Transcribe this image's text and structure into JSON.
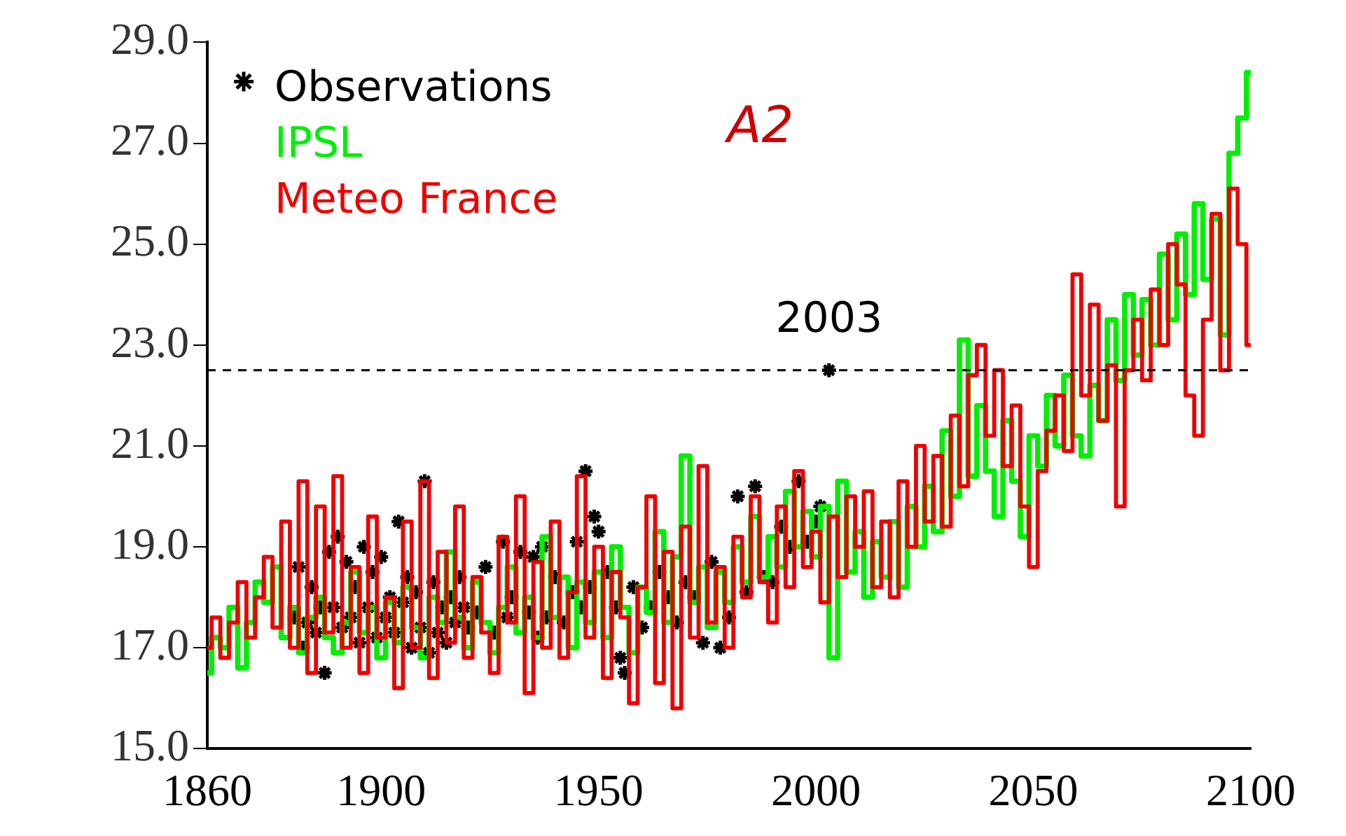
{
  "chart_data": {
    "type": "step",
    "xlim": [
      1860,
      2100
    ],
    "xticks": [
      1860,
      1900,
      1950,
      2000,
      2050,
      2100
    ],
    "ylim": [
      15,
      29
    ],
    "yticks": [
      {
        "value": 15,
        "label": "15.0"
      },
      {
        "value": 17,
        "label": "17.0"
      },
      {
        "value": 19,
        "label": "19.0"
      },
      {
        "value": 21,
        "label": "21.0"
      },
      {
        "value": 23,
        "label": "23.0"
      },
      {
        "value": 25,
        "label": "25.0"
      },
      {
        "value": 27,
        "label": "27.0"
      },
      {
        "value": 29,
        "label": "29.0"
      }
    ],
    "legend": "top left",
    "annotations": [
      "A2",
      {
        "text": "2003",
        "x": 2003,
        "y": 22.5
      }
    ],
    "ref_lines": [
      {
        "axis": "y",
        "value": 22.5,
        "color": "#000000",
        "line_style": "dashed"
      }
    ],
    "series": [
      {
        "name": "Observations",
        "type": "scatter",
        "marker": "cross",
        "color": "#000000",
        "x": [
          1880,
          1881,
          1882,
          1883,
          1884,
          1885,
          1886,
          1887,
          1888,
          1889,
          1890,
          1891,
          1892,
          1893,
          1894,
          1895,
          1896,
          1897,
          1898,
          1899,
          1900,
          1901,
          1902,
          1903,
          1904,
          1905,
          1906,
          1907,
          1908,
          1909,
          1910,
          1911,
          1912,
          1913,
          1914,
          1915,
          1916,
          1917,
          1918,
          1919,
          1920,
          1922,
          1924,
          1926,
          1928,
          1929,
          1930,
          1932,
          1934,
          1935,
          1936,
          1937,
          1938,
          1940,
          1942,
          1944,
          1945,
          1946,
          1947,
          1948,
          1949,
          1950,
          1952,
          1954,
          1955,
          1956,
          1958,
          1960,
          1962,
          1964,
          1966,
          1968,
          1970,
          1972,
          1974,
          1976,
          1978,
          1980,
          1982,
          1984,
          1986,
          1988,
          1990,
          1992,
          1994,
          1996,
          1998,
          2000,
          2001,
          2003
        ],
        "values": [
          17.6,
          18.6,
          17.0,
          17.5,
          18.2,
          17.3,
          17.8,
          16.5,
          18.9,
          17.8,
          19.2,
          17.4,
          18.7,
          17.6,
          18.2,
          17.1,
          19.0,
          17.8,
          18.5,
          17.2,
          18.8,
          17.6,
          18.0,
          17.3,
          19.5,
          17.9,
          18.4,
          17.0,
          18.1,
          17.4,
          20.3,
          16.9,
          18.3,
          17.3,
          17.8,
          17.1,
          18.0,
          17.5,
          18.4,
          17.8,
          17.4,
          17.7,
          18.6,
          17.3,
          19.1,
          17.6,
          18.0,
          18.9,
          17.7,
          18.8,
          17.2,
          19.0,
          17.6,
          18.4,
          17.5,
          18.1,
          19.1,
          17.8,
          20.5,
          18.2,
          19.6,
          19.3,
          18.5,
          17.8,
          16.8,
          16.5,
          18.2,
          17.4,
          17.8,
          18.5,
          18.0,
          17.5,
          18.3,
          18.0,
          17.1,
          18.7,
          17.0,
          17.6,
          20.0,
          18.1,
          20.2,
          18.4,
          18.3,
          19.4,
          19.0,
          20.3,
          19.1,
          19.5,
          19.8,
          22.5
        ]
      },
      {
        "name": "IPSL",
        "color": "#00ee00",
        "x": [
          1860,
          1862,
          1864,
          1866,
          1868,
          1870,
          1872,
          1874,
          1876,
          1878,
          1880,
          1882,
          1884,
          1886,
          1888,
          1890,
          1892,
          1894,
          1896,
          1898,
          1900,
          1902,
          1904,
          1906,
          1908,
          1910,
          1912,
          1914,
          1916,
          1918,
          1920,
          1922,
          1924,
          1926,
          1928,
          1930,
          1932,
          1934,
          1936,
          1938,
          1940,
          1942,
          1944,
          1946,
          1948,
          1950,
          1952,
          1954,
          1956,
          1958,
          1960,
          1962,
          1964,
          1966,
          1968,
          1970,
          1972,
          1974,
          1976,
          1978,
          1980,
          1982,
          1984,
          1986,
          1988,
          1990,
          1992,
          1994,
          1996,
          1998,
          2000,
          2002,
          2004,
          2006,
          2008,
          2010,
          2012,
          2014,
          2016,
          2018,
          2020,
          2022,
          2024,
          2026,
          2028,
          2030,
          2032,
          2034,
          2036,
          2038,
          2040,
          2042,
          2044,
          2046,
          2048,
          2050,
          2052,
          2054,
          2056,
          2058,
          2060,
          2062,
          2064,
          2066,
          2068,
          2070,
          2072,
          2074,
          2076,
          2078,
          2080,
          2082,
          2084,
          2086,
          2088,
          2090,
          2092,
          2094,
          2096,
          2098,
          2100
        ],
        "values": [
          16.5,
          17.2,
          17.0,
          17.8,
          16.6,
          17.5,
          18.3,
          17.9,
          18.6,
          17.2,
          17.8,
          16.9,
          17.6,
          18.0,
          17.2,
          16.9,
          17.5,
          18.5,
          17.3,
          17.8,
          16.8,
          17.9,
          17.1,
          18.2,
          17.4,
          16.8,
          18.0,
          17.5,
          18.9,
          17.6,
          17.0,
          18.3,
          17.5,
          16.9,
          17.8,
          18.6,
          17.3,
          18.0,
          17.2,
          19.2,
          17.6,
          18.4,
          17.0,
          18.3,
          17.5,
          18.5,
          17.2,
          19.0,
          17.8,
          16.9,
          18.2,
          17.7,
          19.3,
          17.5,
          18.8,
          20.8,
          17.9,
          18.6,
          17.4,
          18.5,
          17.9,
          19.0,
          18.3,
          19.6,
          18.4,
          19.2,
          18.6,
          20.1,
          19.0,
          19.7,
          18.8,
          19.8,
          16.8,
          20.3,
          18.5,
          19.3,
          18.0,
          19.1,
          18.4,
          19.5,
          18.2,
          19.8,
          19.0,
          20.2,
          19.3,
          21.3,
          20.0,
          23.1,
          20.4,
          21.8,
          20.5,
          19.6,
          21.5,
          20.3,
          19.2,
          21.2,
          20.6,
          22.0,
          21.0,
          22.4,
          21.2,
          20.8,
          22.2,
          21.5,
          23.5,
          22.3,
          24.0,
          22.8,
          23.9,
          23.0,
          24.8,
          23.5,
          25.2,
          24.0,
          25.8,
          24.3,
          25.5,
          23.2,
          26.8,
          27.5,
          28.4
        ]
      },
      {
        "name": "Meteo France",
        "color": "#ee0000",
        "x": [
          1860,
          1862,
          1864,
          1866,
          1868,
          1870,
          1872,
          1874,
          1876,
          1878,
          1880,
          1882,
          1884,
          1886,
          1888,
          1890,
          1892,
          1894,
          1896,
          1898,
          1900,
          1902,
          1904,
          1906,
          1908,
          1910,
          1912,
          1914,
          1916,
          1918,
          1920,
          1922,
          1924,
          1926,
          1928,
          1930,
          1932,
          1934,
          1936,
          1938,
          1940,
          1942,
          1944,
          1946,
          1948,
          1950,
          1952,
          1954,
          1956,
          1958,
          1960,
          1962,
          1964,
          1966,
          1968,
          1970,
          1972,
          1974,
          1976,
          1978,
          1980,
          1982,
          1984,
          1986,
          1988,
          1990,
          1992,
          1994,
          1996,
          1998,
          2000,
          2002,
          2004,
          2006,
          2008,
          2010,
          2012,
          2014,
          2016,
          2018,
          2020,
          2022,
          2024,
          2026,
          2028,
          2030,
          2032,
          2034,
          2036,
          2038,
          2040,
          2042,
          2044,
          2046,
          2048,
          2050,
          2052,
          2054,
          2056,
          2058,
          2060,
          2062,
          2064,
          2066,
          2068,
          2070,
          2072,
          2074,
          2076,
          2078,
          2080,
          2082,
          2084,
          2086,
          2088,
          2090,
          2092,
          2094,
          2096,
          2098,
          2100
        ],
        "values": [
          17.0,
          17.6,
          16.8,
          17.5,
          18.3,
          17.2,
          18.0,
          18.8,
          17.4,
          19.5,
          17.0,
          20.3,
          16.5,
          19.8,
          17.3,
          20.4,
          17.0,
          18.6,
          16.5,
          19.6,
          17.2,
          18.0,
          16.2,
          19.5,
          17.0,
          20.3,
          16.4,
          18.9,
          17.1,
          19.8,
          16.8,
          18.4,
          17.3,
          16.5,
          19.2,
          17.5,
          20.0,
          16.1,
          18.7,
          17.0,
          19.5,
          16.8,
          18.1,
          20.4,
          17.2,
          19.0,
          16.4,
          18.5,
          17.6,
          15.9,
          18.2,
          20.0,
          16.3,
          18.9,
          15.8,
          19.4,
          17.2,
          20.6,
          17.5,
          18.6,
          17.0,
          19.2,
          18.0,
          20.0,
          18.3,
          17.5,
          19.8,
          18.2,
          20.5,
          18.6,
          19.3,
          17.9,
          19.6,
          18.4,
          20.0,
          19.0,
          20.1,
          18.2,
          19.5,
          18.0,
          20.3,
          19.0,
          21.0,
          19.5,
          20.8,
          19.4,
          21.6,
          20.2,
          22.4,
          23.0,
          21.2,
          22.5,
          20.6,
          21.8,
          19.8,
          18.6,
          20.5,
          21.3,
          22.0,
          20.9,
          24.4,
          22.0,
          23.8,
          21.5,
          22.6,
          19.8,
          22.5,
          23.5,
          22.3,
          24.1,
          23.0,
          25.0,
          24.2,
          22.0,
          21.2,
          23.5,
          25.6,
          22.5,
          26.1,
          25.0,
          23.0
        ]
      }
    ]
  }
}
